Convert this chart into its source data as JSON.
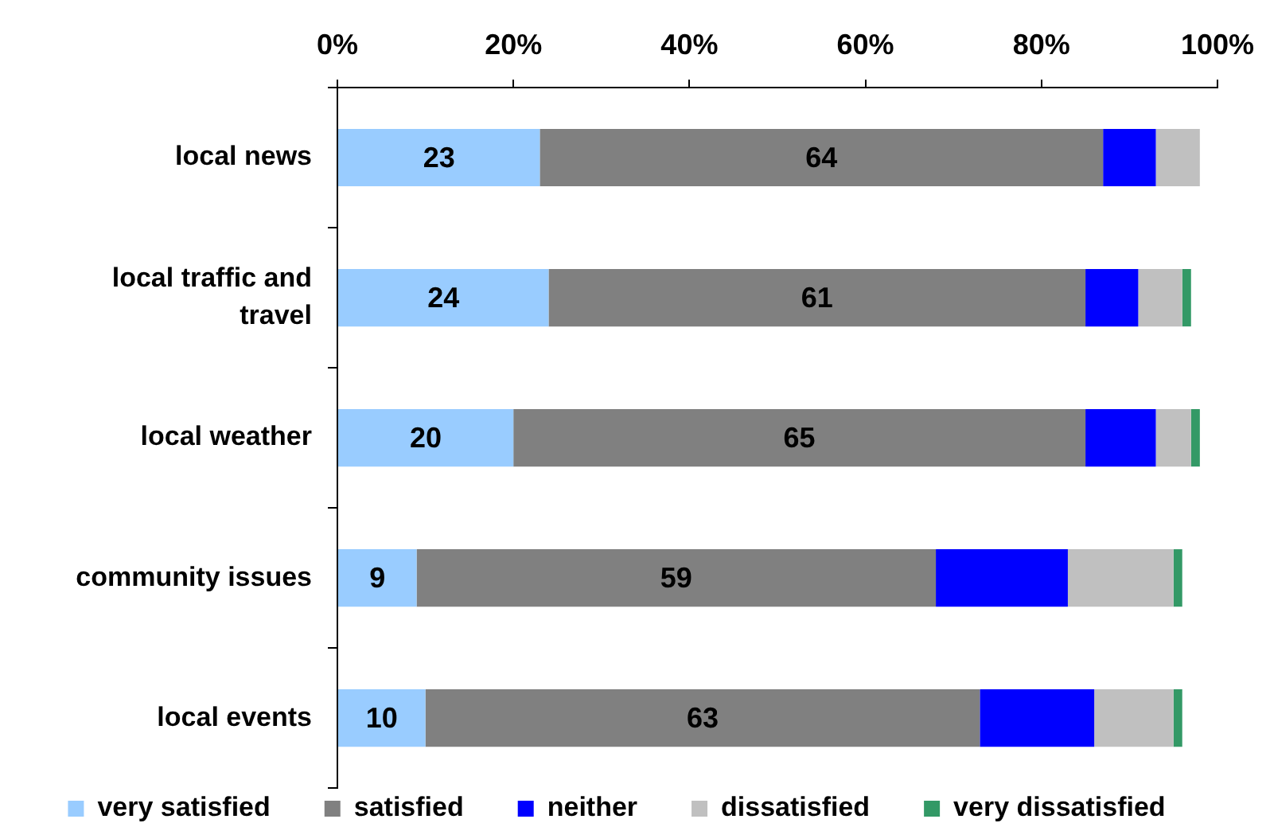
{
  "chart_data": {
    "type": "bar",
    "orientation": "horizontal",
    "stacked": true,
    "categories": [
      "local news",
      "local traffic and travel",
      "local weather",
      "community issues",
      "local events"
    ],
    "series": [
      {
        "name": "very satisfied",
        "color": "#99ccff",
        "values": [
          23,
          24,
          20,
          9,
          10
        ],
        "value_labels": [
          "23",
          "24",
          "20",
          "9",
          "10"
        ]
      },
      {
        "name": "satisfied",
        "color": "#808080",
        "values": [
          64,
          61,
          65,
          59,
          63
        ],
        "value_labels": [
          "64",
          "61",
          "65",
          "59",
          "63"
        ]
      },
      {
        "name": "neither",
        "color": "#0000ff",
        "values": [
          6,
          6,
          8,
          15,
          13
        ]
      },
      {
        "name": "dissatisfied",
        "color": "#c0c0c0",
        "values": [
          5,
          5,
          4,
          12,
          9
        ]
      },
      {
        "name": "very dissatisfied",
        "color": "#339966",
        "values": [
          null,
          1,
          1,
          1,
          1
        ]
      }
    ],
    "xlim": [
      0,
      100
    ],
    "xticks": [
      {
        "value": 0,
        "label": "0%"
      },
      {
        "value": 20,
        "label": "20%"
      },
      {
        "value": 40,
        "label": "40%"
      },
      {
        "value": 60,
        "label": "60%"
      },
      {
        "value": 80,
        "label": "80%"
      },
      {
        "value": 100,
        "label": "100%"
      }
    ],
    "legend": "bottom"
  }
}
